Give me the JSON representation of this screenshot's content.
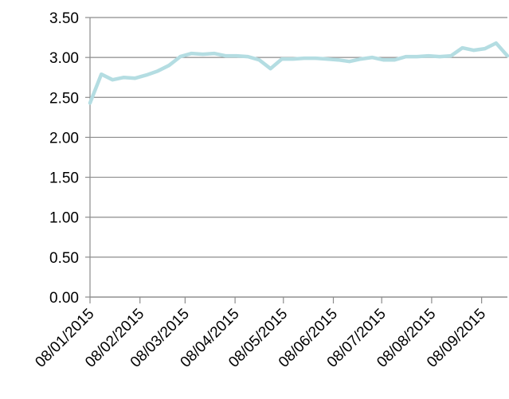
{
  "chart_data": {
    "type": "line",
    "title": "",
    "xlabel": "",
    "ylabel": "",
    "ylim": [
      0,
      3.5
    ],
    "y_ticks": [
      "0.00",
      "0.50",
      "1.00",
      "1.50",
      "2.00",
      "2.50",
      "3.00",
      "3.50"
    ],
    "x_ticks": [
      "08/01/2015",
      "08/02/2015",
      "08/03/2015",
      "08/04/2015",
      "08/05/2015",
      "08/06/2015",
      "08/07/2015",
      "08/08/2015",
      "08/09/2015"
    ],
    "grid": "horizontal",
    "legend": "none",
    "series": [
      {
        "color": "#b4dde2",
        "x": [
          "2015-01-08",
          "2015-01-15",
          "2015-01-22",
          "2015-01-29",
          "2015-02-05",
          "2015-02-12",
          "2015-02-19",
          "2015-02-26",
          "2015-03-05",
          "2015-03-12",
          "2015-03-19",
          "2015-03-26",
          "2015-04-02",
          "2015-04-09",
          "2015-04-16",
          "2015-04-23",
          "2015-04-30",
          "2015-05-07",
          "2015-05-14",
          "2015-05-21",
          "2015-05-28",
          "2015-06-04",
          "2015-06-11",
          "2015-06-18",
          "2015-06-25",
          "2015-07-02",
          "2015-07-09",
          "2015-07-16",
          "2015-07-23",
          "2015-07-30",
          "2015-08-06",
          "2015-08-13",
          "2015-08-20",
          "2015-08-27",
          "2015-09-03",
          "2015-09-10",
          "2015-09-17",
          "2015-09-24"
        ],
        "values": [
          2.43,
          2.79,
          2.72,
          2.75,
          2.74,
          2.78,
          2.83,
          2.9,
          3.01,
          3.05,
          3.04,
          3.05,
          3.02,
          3.02,
          3.01,
          2.97,
          2.86,
          2.98,
          2.98,
          2.99,
          2.99,
          2.98,
          2.97,
          2.95,
          2.98,
          3.0,
          2.97,
          2.97,
          3.01,
          3.01,
          3.02,
          3.01,
          3.02,
          3.12,
          3.09,
          3.11,
          3.18,
          3.02
        ]
      }
    ]
  }
}
